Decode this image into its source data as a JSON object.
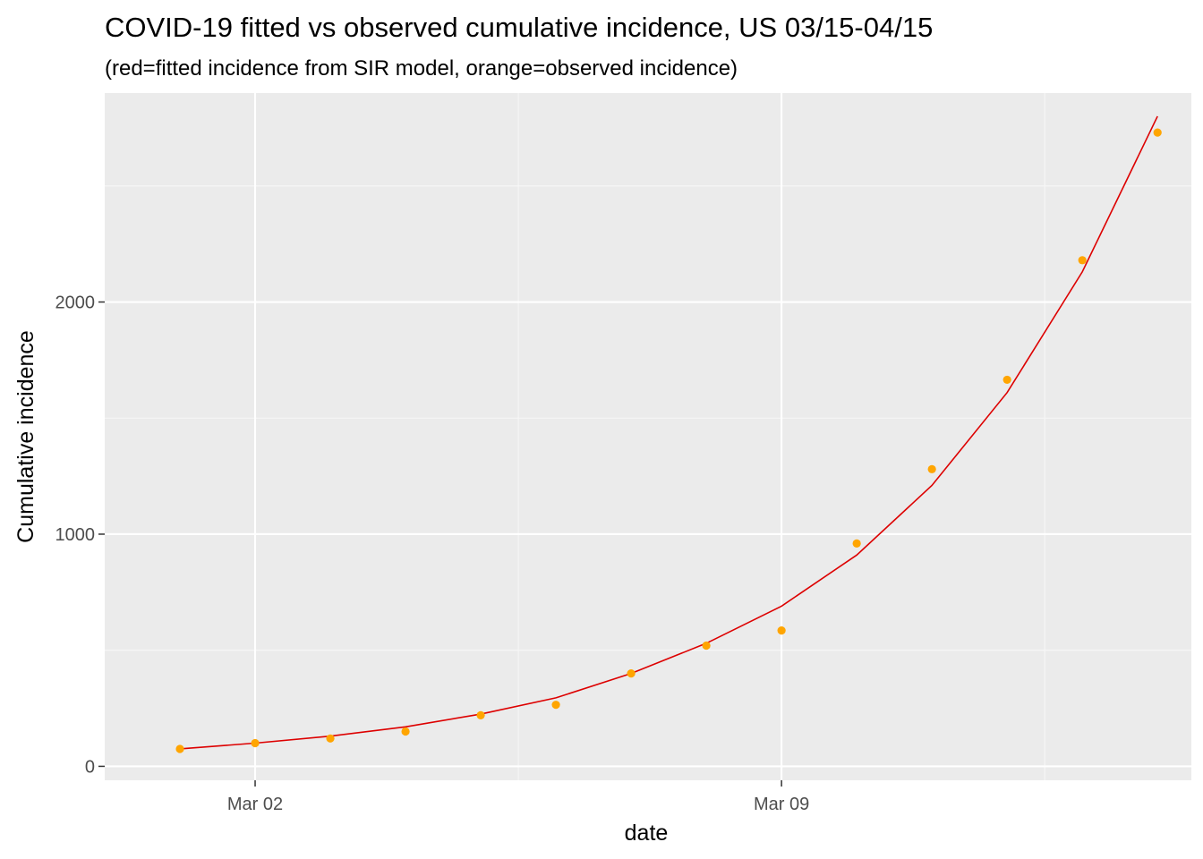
{
  "chart_data": {
    "type": "line",
    "title": "COVID-19 fitted vs observed cumulative incidence, US 03/15-04/15",
    "subtitle": "(red=fitted incidence from SIR model, orange=observed incidence)",
    "xlabel": "date",
    "ylabel": "Cumulative incidence",
    "x_ticks": [
      "Mar 02",
      "Mar 09"
    ],
    "y_ticks": [
      "0",
      "1000",
      "2000"
    ],
    "x": [
      "Mar 01",
      "Mar 02",
      "Mar 03",
      "Mar 04",
      "Mar 05",
      "Mar 06",
      "Mar 07",
      "Mar 08",
      "Mar 09",
      "Mar 10",
      "Mar 11",
      "Mar 12",
      "Mar 13",
      "Mar 14"
    ],
    "xlim": [
      "Feb 29",
      "Mar 14"
    ],
    "ylim": [
      -60,
      2900
    ],
    "grid": true,
    "legend": "none",
    "series": [
      {
        "color": "#dd0000",
        "style": "line",
        "values": [
          75,
          100,
          130,
          170,
          225,
          295,
          400,
          530,
          690,
          910,
          1210,
          1610,
          2130,
          2800
        ]
      },
      {
        "color": "#ffa500",
        "style": "points",
        "values": [
          75,
          100,
          120,
          150,
          220,
          265,
          400,
          520,
          585,
          960,
          1280,
          1665,
          2180,
          2730
        ]
      }
    ]
  },
  "colors": {
    "panel_background": "#ebebeb",
    "grid_major": "#ffffff",
    "grid_minor": "#f7f7f7",
    "tick_mark": "#333333",
    "tick_label": "#4d4d4d"
  }
}
